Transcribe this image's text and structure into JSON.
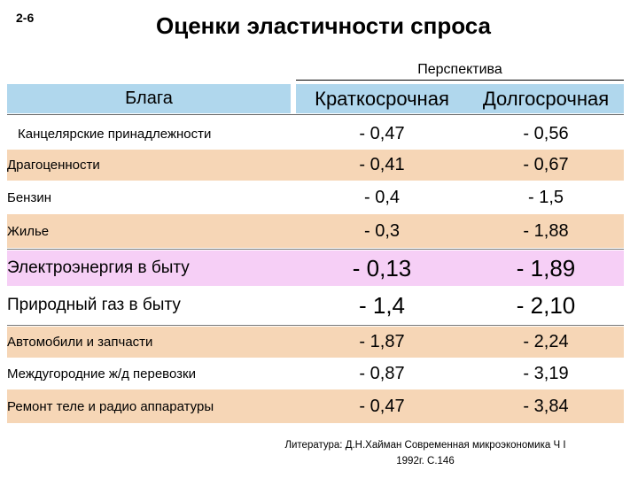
{
  "slide_number": "2-6",
  "title": "Оценки эластичности спроса",
  "table": {
    "perspective_label": "Перспектива",
    "col_goods": "Блага",
    "col_short": "Краткосрочная",
    "col_long": "Долгосрочная",
    "rows": [
      {
        "name": "Канцелярские принадлежности",
        "short": "- 0,47",
        "long": "- 0,56"
      },
      {
        "name": "Драгоценности",
        "short": "- 0,41",
        "long": "- 0,67"
      },
      {
        "name": "Бензин",
        "short": "- 0,4",
        "long": "- 1,5"
      },
      {
        "name": "Жилье",
        "short": "- 0,3",
        "long": "- 1,88"
      },
      {
        "name": "Электроэнергия в быту",
        "short": "- 0,13",
        "long": "- 1,89"
      },
      {
        "name": "Природный газ в быту",
        "short": "- 1,4",
        "long": "- 2,10"
      },
      {
        "name": "Автомобили и запчасти",
        "short": "- 1,87",
        "long": "- 2,24"
      },
      {
        "name": "Междугородние ж/д перевозки",
        "short": "- 0,87",
        "long": "- 3,19"
      },
      {
        "name": "Ремонт теле и радио аппаратуры",
        "short": "- 0,47",
        "long": "- 3,84"
      }
    ]
  },
  "reference": {
    "line1": "Литература: Д.Н.Хайман Современная микроэкономика Ч I",
    "line2": "1992г. С.146"
  }
}
